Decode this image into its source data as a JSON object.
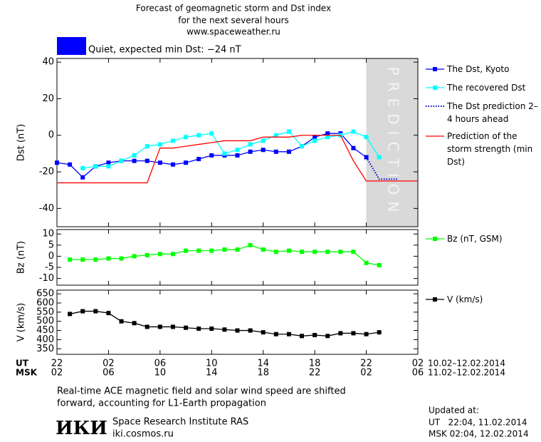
{
  "header": {
    "title_lines": [
      "Forecast of geomagnetic storm and Dst index",
      "for the next several hours",
      "www.spaceweather.ru"
    ]
  },
  "chart_data": [
    {
      "type": "line",
      "y_label": "Dst (nT)",
      "status": "Quiet, expected min Dst: −24 nT",
      "status_color": "#0000ff",
      "xlim": [
        0,
        28
      ],
      "ylim": [
        -50,
        42
      ],
      "yticks": [
        -40,
        -20,
        0,
        20,
        40
      ],
      "shade": [
        24,
        28
      ],
      "shade_color": "#d9d9d9",
      "annotation": "PREDICTION",
      "series": [
        {
          "name": "The Dst, Kyoto",
          "color": "#0000ff",
          "marker": "square",
          "x": [
            0,
            1,
            2,
            3,
            4,
            5,
            6,
            7,
            8,
            9,
            10,
            11,
            12,
            13,
            14,
            15,
            16,
            17,
            18,
            19,
            20,
            21,
            22,
            23,
            24
          ],
          "values": [
            -15,
            -16,
            -23,
            -17,
            -15,
            -14,
            -14,
            -14,
            -15,
            -16,
            -15,
            -13,
            -11,
            -11,
            -11,
            -9,
            -8,
            -9,
            -9,
            -6,
            -1,
            1,
            1,
            -7,
            -12
          ]
        },
        {
          "name": "The recovered Dst",
          "color": "#00ffff",
          "marker": "square",
          "x": [
            2,
            3,
            4,
            5,
            6,
            7,
            8,
            9,
            10,
            11,
            12,
            13,
            14,
            15,
            16,
            17,
            18,
            19,
            20,
            21,
            22,
            23,
            24,
            25
          ],
          "values": [
            -18,
            -17,
            -17,
            -14,
            -11,
            -6,
            -5,
            -3,
            -1,
            0,
            1,
            -10,
            -8,
            -5,
            -3,
            0,
            2,
            -6,
            -3,
            -1,
            0,
            2,
            -1,
            -12
          ]
        },
        {
          "name": "The Dst prediction 2–4 hours ahead",
          "color": "#0000cc",
          "dash": "dotted",
          "x": [
            24,
            25,
            26.5
          ],
          "values": [
            -12,
            -24,
            -24
          ]
        },
        {
          "name": "Prediction of the storm strength (min Dst)",
          "color": "#ff0000",
          "x": [
            0,
            1,
            2,
            3,
            4,
            5,
            6,
            7,
            8,
            9,
            10,
            11,
            12,
            13,
            14,
            15,
            16,
            17,
            18,
            19,
            20,
            21,
            22,
            23,
            24,
            25,
            26,
            27,
            28
          ],
          "values": [
            -26,
            -26,
            -26,
            -26,
            -26,
            -26,
            -26,
            -26,
            -7,
            -7,
            -6,
            -5,
            -4,
            -3,
            -3,
            -3,
            -1,
            -1,
            -1,
            0,
            0,
            0,
            0,
            -14,
            -25,
            -25,
            -25,
            -25,
            -25
          ]
        }
      ]
    },
    {
      "type": "line",
      "y_label": "Bz (nT)",
      "xlim": [
        0,
        28
      ],
      "ylim": [
        -13,
        12
      ],
      "yticks": [
        -10,
        -5,
        0,
        5,
        10
      ],
      "series": [
        {
          "name": "Bz (nT, GSM)",
          "color": "#00ff00",
          "marker": "square",
          "x": [
            1,
            2,
            3,
            4,
            5,
            6,
            7,
            8,
            9,
            10,
            11,
            12,
            13,
            14,
            15,
            16,
            17,
            18,
            19,
            20,
            21,
            22,
            23,
            24,
            25
          ],
          "values": [
            -1.5,
            -1.5,
            -1.5,
            -1,
            -1,
            0,
            0.5,
            1,
            1,
            2.5,
            2.5,
            2.5,
            3,
            3,
            5,
            3,
            2,
            2.5,
            2,
            2,
            2,
            2,
            2,
            -3,
            -4
          ]
        }
      ]
    },
    {
      "type": "line",
      "y_label": "V (km/s)",
      "xlim": [
        0,
        28
      ],
      "ylim": [
        320,
        670
      ],
      "yticks": [
        350,
        400,
        450,
        500,
        550,
        600,
        650
      ],
      "xticks": [
        {
          "value": 0,
          "label": "22"
        },
        {
          "value": 4,
          "label": "02"
        },
        {
          "value": 8,
          "label": "06"
        },
        {
          "value": 12,
          "label": "10"
        },
        {
          "value": 16,
          "label": "14"
        },
        {
          "value": 20,
          "label": "18"
        },
        {
          "value": 24,
          "label": "22"
        },
        {
          "value": 28,
          "label": "02"
        }
      ],
      "xticks_msk": [
        "02",
        "06",
        "10",
        "14",
        "18",
        "22",
        "02",
        "06"
      ],
      "x_row_labels": [
        "UT",
        "MSK"
      ],
      "date_ranges": [
        "10.02–12.02.2014",
        "11.02–12.02.2014"
      ],
      "series": [
        {
          "name": "V (km/s)",
          "color": "#000000",
          "marker": "square",
          "x": [
            1,
            2,
            3,
            4,
            5,
            6,
            7,
            8,
            9,
            10,
            11,
            12,
            13,
            14,
            15,
            16,
            17,
            18,
            19,
            20,
            21,
            22,
            23,
            24,
            25
          ],
          "values": [
            540,
            555,
            555,
            545,
            500,
            490,
            470,
            470,
            470,
            465,
            460,
            460,
            455,
            450,
            450,
            440,
            430,
            430,
            420,
            425,
            420,
            435,
            435,
            430,
            440
          ]
        }
      ]
    }
  ],
  "footer": {
    "note_lines": [
      "Real-time ACE magnetic field and solar wind speed are shifted",
      "forward, accounting for L1-Earth propagation"
    ],
    "logo": "ИКИ",
    "institute": "Space Research Institute RAS",
    "site": "iki.cosmos.ru",
    "updated_label": "Updated at:",
    "updated_ut": "UT   22:04, 11.02.2014",
    "updated_msk": "MSK 02:04, 12.02.2014"
  }
}
